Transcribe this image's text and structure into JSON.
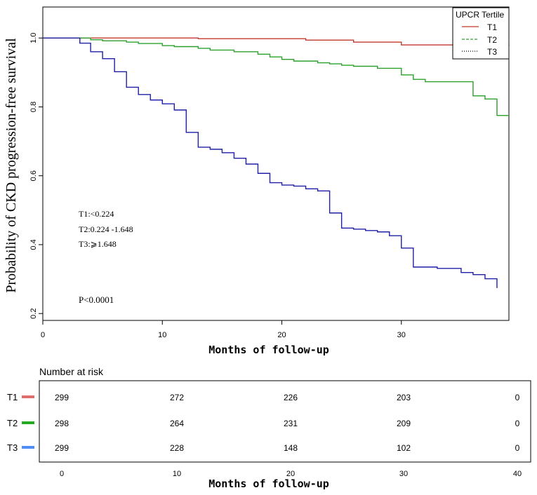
{
  "chart_data": {
    "type": "line",
    "subtype": "kaplan-meier",
    "ylabel": "Probability of CKD progression-free survival",
    "xlabel": "Months of follow-up",
    "xlim": [
      0,
      39
    ],
    "ylim": [
      0.18,
      1.09
    ],
    "x_ticks": [
      "0",
      "10",
      "20",
      "30"
    ],
    "y_ticks": [
      "0.2",
      "0.4",
      "0.6",
      "0.8",
      "1.0"
    ],
    "legend": {
      "title": "UPCR Tertile",
      "placement": "top-right",
      "entries": [
        "T1",
        "T2",
        "T3"
      ]
    },
    "colors": {
      "T1": "#c0392b",
      "T2": "#2ca02c",
      "T3": "#1f1fa8"
    },
    "annotations": [
      "T1:<0.224",
      "T2:0.224 -1.648",
      "T3:⩾1.648"
    ],
    "p_value": "P<0.0001",
    "series": [
      {
        "name": "T1",
        "steps": [
          [
            0,
            1.0
          ],
          [
            3,
            1.0
          ],
          [
            13,
            0.998
          ],
          [
            22,
            0.994
          ],
          [
            26,
            0.988
          ],
          [
            30,
            0.98
          ],
          [
            39,
            0.978
          ]
        ]
      },
      {
        "name": "T2",
        "steps": [
          [
            0,
            1.0
          ],
          [
            3,
            1.0
          ],
          [
            4,
            0.995
          ],
          [
            5,
            0.992
          ],
          [
            7,
            0.988
          ],
          [
            8,
            0.984
          ],
          [
            10,
            0.978
          ],
          [
            11,
            0.975
          ],
          [
            13,
            0.97
          ],
          [
            14,
            0.965
          ],
          [
            16,
            0.96
          ],
          [
            18,
            0.953
          ],
          [
            19,
            0.945
          ],
          [
            20,
            0.938
          ],
          [
            21,
            0.933
          ],
          [
            23,
            0.928
          ],
          [
            24,
            0.925
          ],
          [
            25,
            0.921
          ],
          [
            26,
            0.918
          ],
          [
            28,
            0.912
          ],
          [
            30,
            0.893
          ],
          [
            31,
            0.88
          ],
          [
            32,
            0.873
          ],
          [
            36,
            0.832
          ],
          [
            37,
            0.823
          ],
          [
            38,
            0.775
          ],
          [
            39,
            0.775
          ]
        ]
      },
      {
        "name": "T3",
        "steps": [
          [
            0,
            1.0
          ],
          [
            3,
            1.0
          ],
          [
            3.1,
            0.985
          ],
          [
            4,
            0.96
          ],
          [
            5,
            0.94
          ],
          [
            6,
            0.902
          ],
          [
            7,
            0.857
          ],
          [
            8,
            0.836
          ],
          [
            9,
            0.82
          ],
          [
            10,
            0.809
          ],
          [
            11,
            0.791
          ],
          [
            12,
            0.726
          ],
          [
            13,
            0.683
          ],
          [
            14,
            0.677
          ],
          [
            15,
            0.667
          ],
          [
            16,
            0.651
          ],
          [
            17,
            0.634
          ],
          [
            18,
            0.607
          ],
          [
            19,
            0.58
          ],
          [
            20,
            0.573
          ],
          [
            21,
            0.57
          ],
          [
            22,
            0.562
          ],
          [
            23,
            0.556
          ],
          [
            24,
            0.492
          ],
          [
            25,
            0.448
          ],
          [
            26,
            0.445
          ],
          [
            27,
            0.441
          ],
          [
            28,
            0.437
          ],
          [
            29,
            0.426
          ],
          [
            30,
            0.39
          ],
          [
            31,
            0.335
          ],
          [
            33,
            0.331
          ],
          [
            35,
            0.319
          ],
          [
            36,
            0.313
          ],
          [
            37,
            0.301
          ],
          [
            38,
            0.274
          ]
        ]
      }
    ]
  },
  "risk_table": {
    "title": "Number at risk",
    "xlabel": "Months of follow-up",
    "x_ticks": [
      "0",
      "10",
      "20",
      "30",
      "40"
    ],
    "rows": [
      {
        "label": "T1",
        "color": "#e06c6c",
        "values": [
          "299",
          "272",
          "226",
          "203",
          "0"
        ]
      },
      {
        "label": "T2",
        "color": "#22aa22",
        "values": [
          "298",
          "264",
          "231",
          "209",
          "0"
        ]
      },
      {
        "label": "T3",
        "color": "#4f8df7",
        "values": [
          "299",
          "228",
          "148",
          "102",
          "0"
        ]
      }
    ]
  }
}
